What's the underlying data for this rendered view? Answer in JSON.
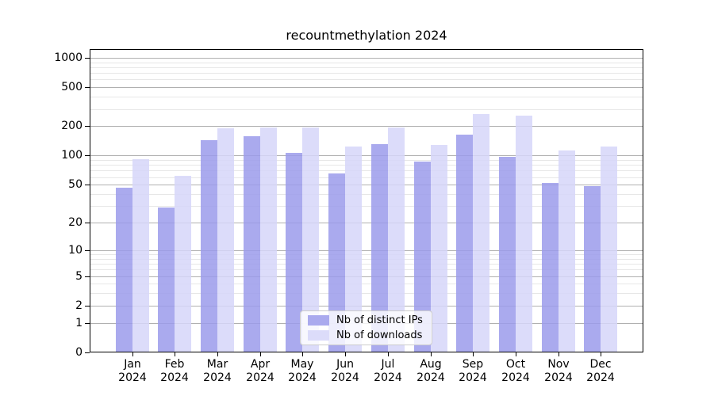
{
  "chart_data": {
    "type": "bar",
    "title": "recountmethylation 2024",
    "categories": [
      "Jan 2024",
      "Feb 2024",
      "Mar 2024",
      "Apr 2024",
      "May 2024",
      "Jun 2024",
      "Jul 2024",
      "Aug 2024",
      "Sep 2024",
      "Oct 2024",
      "Nov 2024",
      "Dec 2024"
    ],
    "series": [
      {
        "name": "Nb of distinct IPs",
        "values": [
          47,
          29,
          145,
          158,
          106,
          65,
          132,
          87,
          165,
          98,
          52,
          48
        ],
        "color": "#aaaaee",
        "fill": "rgba(155,155,235,0.85)"
      },
      {
        "name": "Nb of downloads",
        "values": [
          92,
          62,
          189,
          193,
          193,
          124,
          196,
          130,
          266,
          256,
          114,
          123
        ],
        "color": "#dcdcfa",
        "fill": "rgba(214,214,249,0.85)"
      }
    ],
    "xlabel": "",
    "ylabel": "",
    "y_scale": "log1p",
    "ylim": [
      0,
      1100
    ],
    "y_ticks": [
      0,
      1,
      2,
      5,
      10,
      20,
      50,
      100,
      200,
      500,
      1000
    ],
    "y_minor_ticks": [
      3,
      4,
      6,
      7,
      8,
      9,
      30,
      40,
      60,
      70,
      80,
      90,
      300,
      400,
      600,
      700,
      800,
      900
    ],
    "grid": "on",
    "grid_major_color": "#b0b0b0",
    "grid_minor_color": "#e7e7e7",
    "legend_position": "lower center"
  }
}
